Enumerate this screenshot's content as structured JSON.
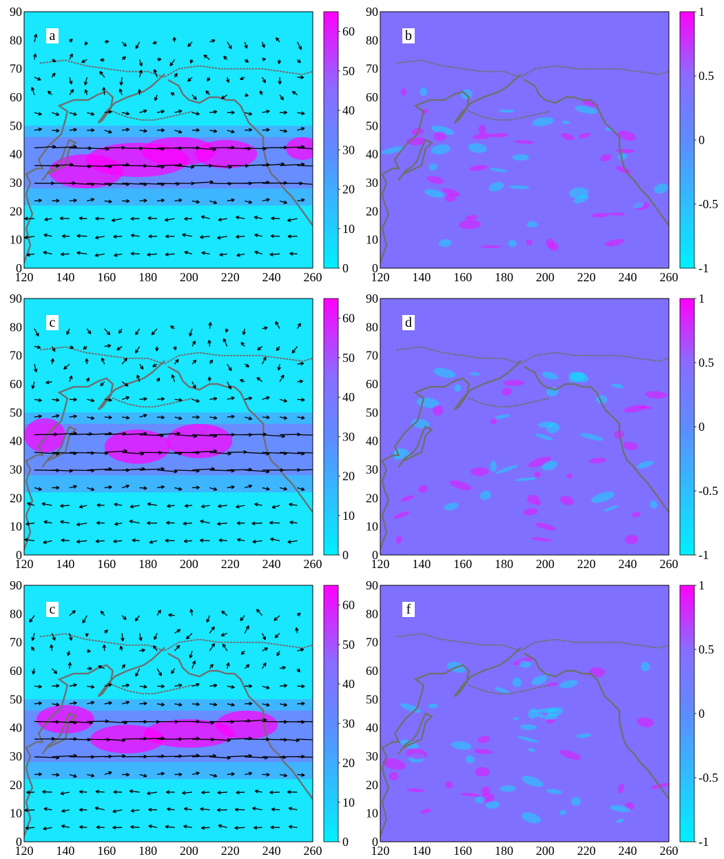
{
  "colors": {
    "cyan": "#00f0ff",
    "blue_mid": "#5d8cff",
    "violet": "#8a6cff",
    "magenta": "#ff00ff",
    "coast": "#6f6f6f",
    "arrow": "#000000"
  },
  "axes": {
    "x_ticks": [
      "120",
      "140",
      "160",
      "180",
      "200",
      "220",
      "240",
      "260"
    ],
    "y_ticks": [
      "0",
      "10",
      "20",
      "30",
      "40",
      "50",
      "60",
      "70",
      "80",
      "90"
    ]
  },
  "colorbars": {
    "speed_ticks": [
      "0",
      "10",
      "20",
      "30",
      "40",
      "50",
      "60"
    ],
    "anomaly_ticks": [
      "-1",
      "-0.5",
      "0",
      "0.5",
      "1"
    ]
  },
  "panels": [
    {
      "label": "a",
      "kind": "speed",
      "vectors": true,
      "ylim": [
        0,
        90
      ],
      "xlim": [
        120,
        260
      ],
      "clim": [
        0,
        65
      ]
    },
    {
      "label": "b",
      "kind": "anomaly",
      "vectors": false,
      "ylim": [
        0,
        90
      ],
      "xlim": [
        120,
        260
      ],
      "clim": [
        -1,
        1
      ]
    },
    {
      "label": "c",
      "kind": "speed",
      "vectors": true,
      "ylim": [
        0,
        90
      ],
      "xlim": [
        120,
        260
      ],
      "clim": [
        0,
        65
      ]
    },
    {
      "label": "d",
      "kind": "anomaly",
      "vectors": false,
      "ylim": [
        0,
        90
      ],
      "xlim": [
        120,
        260
      ],
      "clim": [
        -1,
        1
      ]
    },
    {
      "label": "c",
      "kind": "speed",
      "vectors": true,
      "ylim": [
        0,
        90
      ],
      "xlim": [
        120,
        260
      ],
      "clim": [
        0,
        65
      ]
    },
    {
      "label": "f",
      "kind": "anomaly",
      "vectors": false,
      "ylim": [
        0,
        90
      ],
      "xlim": [
        120,
        260
      ],
      "clim": [
        -1,
        1
      ]
    }
  ]
}
